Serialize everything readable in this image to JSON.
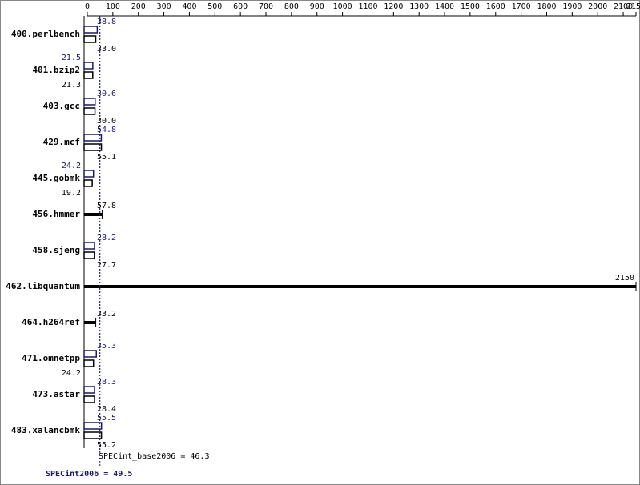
{
  "chart_data": {
    "type": "bar",
    "orientation": "horizontal",
    "categories": [
      "400.perlbench",
      "401.bzip2",
      "403.gcc",
      "429.mcf",
      "445.gobmk",
      "456.hmmer",
      "458.sjeng",
      "462.libquantum",
      "464.h264ref",
      "471.omnetpp",
      "473.astar",
      "483.xalancbmk"
    ],
    "series": [
      {
        "color": "#191970",
        "values": [
          38.8,
          21.5,
          30.6,
          54.8,
          24.2,
          null,
          28.2,
          null,
          null,
          35.3,
          28.3,
          55.5
        ],
        "value_labels": [
          "38.8",
          "21.5",
          "30.6",
          "54.8",
          "24.2",
          null,
          "28.2",
          null,
          null,
          "35.3",
          "28.3",
          "55.5"
        ]
      },
      {
        "color": "#000000",
        "values": [
          33.0,
          21.3,
          30.0,
          55.1,
          19.2,
          57.8,
          27.7,
          2150,
          33.2,
          24.2,
          28.4,
          55.2
        ],
        "value_labels": [
          "33.0",
          "21.3",
          "30.0",
          "55.1",
          "19.2",
          "57.8",
          "27.7",
          "2150",
          "33.2",
          "24.2",
          "28.4",
          "55.2"
        ]
      }
    ],
    "reference_lines": [
      {
        "label": "SPECint_base2006 = 46.3",
        "value": 46.3,
        "color": "#000000"
      },
      {
        "label": "SPECint2006 = 49.5",
        "value": 49.5,
        "color": "#191970"
      }
    ],
    "xlim": [
      0,
      2150
    ],
    "xticks": [
      0,
      100,
      200,
      300,
      400,
      500,
      600,
      700,
      800,
      900,
      1000,
      1100,
      1200,
      1300,
      1400,
      1500,
      1600,
      1700,
      1800,
      1900,
      2000,
      2100,
      2150
    ]
  }
}
